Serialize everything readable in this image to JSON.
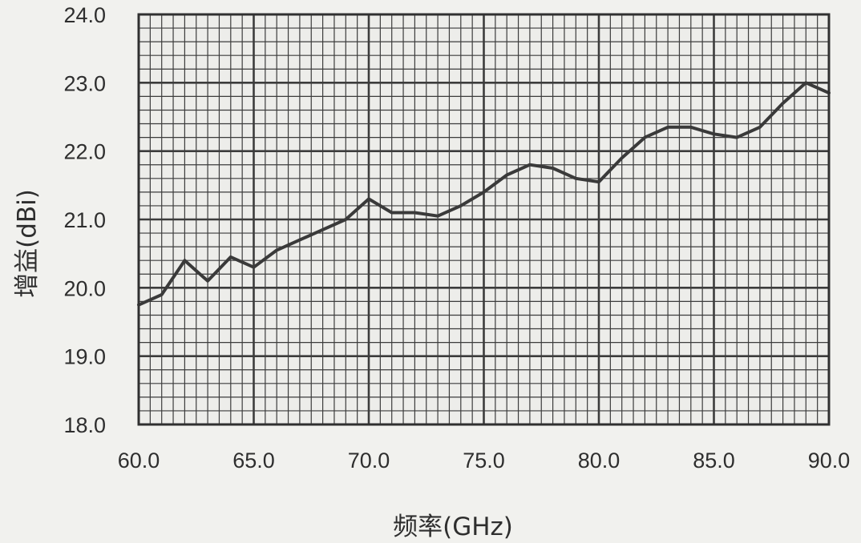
{
  "chart_data": {
    "type": "line",
    "xlabel": "频率(GHz)",
    "ylabel": "增益(dBi)",
    "xlim": [
      60.0,
      90.0
    ],
    "ylim": [
      18.0,
      24.0
    ],
    "x_ticks": [
      "60.0",
      "65.0",
      "70.0",
      "75.0",
      "80.0",
      "85.0",
      "90.0"
    ],
    "y_ticks": [
      "18.0",
      "19.0",
      "20.0",
      "21.0",
      "22.0",
      "23.0",
      "24.0"
    ],
    "grid": true,
    "colors": {
      "line": "#3a3a3a",
      "grid": "#3c3c3c",
      "frame": "#303030"
    },
    "series": [
      {
        "x": [
          60.0,
          61.0,
          62.0,
          63.0,
          64.0,
          65.0,
          66.0,
          67.0,
          68.0,
          69.0,
          70.0,
          71.0,
          72.0,
          73.0,
          74.0,
          75.0,
          76.0,
          77.0,
          78.0,
          79.0,
          80.0,
          81.0,
          82.0,
          83.0,
          84.0,
          85.0,
          86.0,
          87.0,
          88.0,
          89.0,
          90.0
        ],
        "values": [
          19.75,
          19.9,
          20.4,
          20.1,
          20.45,
          20.3,
          20.55,
          20.7,
          20.85,
          21.0,
          21.3,
          21.1,
          21.1,
          21.05,
          21.2,
          21.4,
          21.65,
          21.8,
          21.75,
          21.6,
          21.55,
          21.9,
          22.2,
          22.35,
          22.35,
          22.25,
          22.2,
          22.35,
          22.7,
          23.0,
          22.85
        ]
      }
    ]
  }
}
